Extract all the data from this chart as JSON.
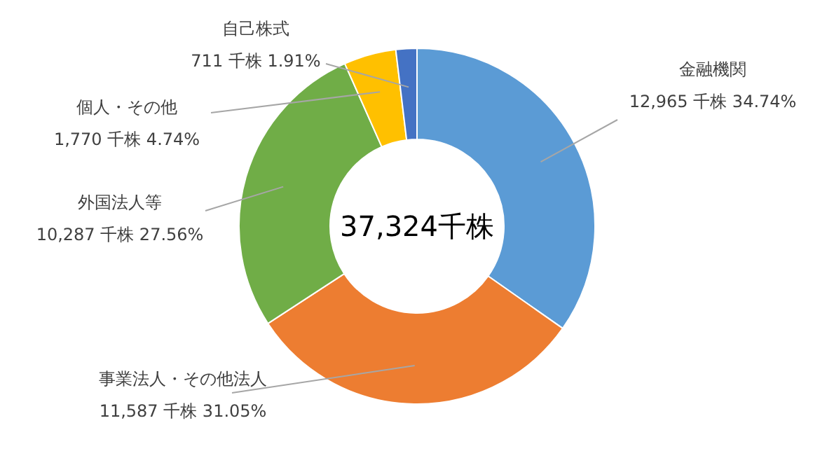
{
  "chart_data": {
    "type": "donut",
    "categories": [
      "金融機関",
      "事業法人・その他法人",
      "外国法人等",
      "個人・その他",
      "自己株式"
    ],
    "values": [
      12965,
      11587,
      10287,
      1770,
      711
    ],
    "colors": [
      "#5b9bd5",
      "#ed7d31",
      "#70ad47",
      "#ffc000",
      "#4472c4"
    ],
    "value_labels": [
      "12,965 千株 34.74%",
      "11,587 千株 31.05%",
      "10,287 千株 27.56%",
      "1,770 千株 4.74%",
      "711 千株 1.91%"
    ],
    "annotations": [
      "37,324千株"
    ]
  }
}
